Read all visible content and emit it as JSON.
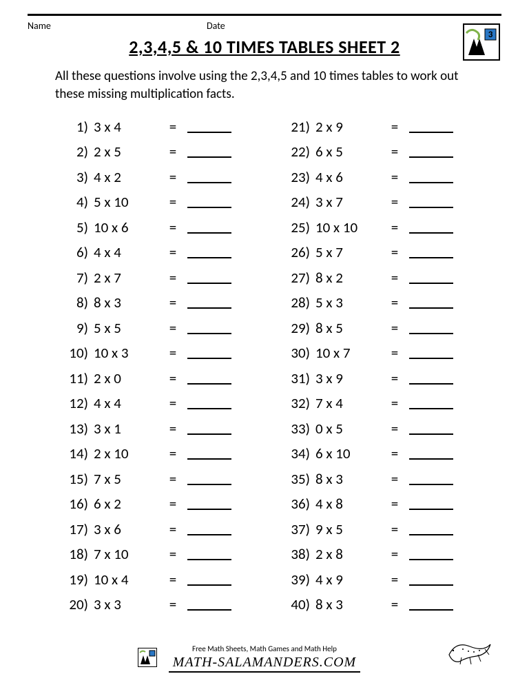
{
  "header": {
    "name_label": "Name",
    "date_label": "Date",
    "logo_digit": "3"
  },
  "title": "2,3,4,5 & 10 TIMES TABLES SHEET 2",
  "instructions": "All these questions involve using the 2,3,4,5 and 10 times tables to work out these missing multiplication facts.",
  "problems_left": [
    {
      "n": "1)",
      "e": "3 x 4"
    },
    {
      "n": "2)",
      "e": "2 x 5"
    },
    {
      "n": "3)",
      "e": "4 x 2"
    },
    {
      "n": "4)",
      "e": "5 x 10"
    },
    {
      "n": "5)",
      "e": "10 x 6"
    },
    {
      "n": "6)",
      "e": "4 x 4"
    },
    {
      "n": "7)",
      "e": "2 x 7"
    },
    {
      "n": "8)",
      "e": "8 x 3"
    },
    {
      "n": "9)",
      "e": "5 x 5"
    },
    {
      "n": "10)",
      "e": "10 x 3"
    },
    {
      "n": "11)",
      "e": "2 x 0"
    },
    {
      "n": "12)",
      "e": "4 x 4"
    },
    {
      "n": "13)",
      "e": "3 x 1"
    },
    {
      "n": "14)",
      "e": "2 x 10"
    },
    {
      "n": "15)",
      "e": "7 x 5"
    },
    {
      "n": "16)",
      "e": "6 x 2"
    },
    {
      "n": "17)",
      "e": "3 x 6"
    },
    {
      "n": "18)",
      "e": "7 x 10"
    },
    {
      "n": "19)",
      "e": "10 x 4"
    },
    {
      "n": "20)",
      "e": "3 x 3"
    }
  ],
  "problems_right": [
    {
      "n": "21)",
      "e": "2 x 9"
    },
    {
      "n": "22)",
      "e": "6 x 5"
    },
    {
      "n": "23)",
      "e": "4 x 6"
    },
    {
      "n": "24)",
      "e": "3 x 7"
    },
    {
      "n": "25)",
      "e": "10 x 10"
    },
    {
      "n": "26)",
      "e": "5 x 7"
    },
    {
      "n": "27)",
      "e": "8 x 2"
    },
    {
      "n": "28)",
      "e": "5 x 3"
    },
    {
      "n": "29)",
      "e": "8 x 5"
    },
    {
      "n": "30)",
      "e": "10 x 7"
    },
    {
      "n": "31)",
      "e": "3 x 9"
    },
    {
      "n": "32)",
      "e": "7 x 4"
    },
    {
      "n": "33)",
      "e": "0 x 5"
    },
    {
      "n": "34)",
      "e": "6 x 10"
    },
    {
      "n": "35)",
      "e": "8 x 3"
    },
    {
      "n": "36)",
      "e": "4 x 8"
    },
    {
      "n": "37)",
      "e": "9 x 5"
    },
    {
      "n": "38)",
      "e": "2 x 8"
    },
    {
      "n": "39)",
      "e": "4 x 9"
    },
    {
      "n": "40)",
      "e": "8 x 3"
    }
  ],
  "equals": "=",
  "footer": {
    "tagline": "Free Math Sheets, Math Games and Math Help",
    "brand": "MATH-SALAMANDERS.COM"
  },
  "colors": {
    "text": "#000000",
    "background": "#ffffff",
    "logo_green": "#7fb249",
    "logo_blue": "#2876c4",
    "logo_black": "#000000"
  }
}
